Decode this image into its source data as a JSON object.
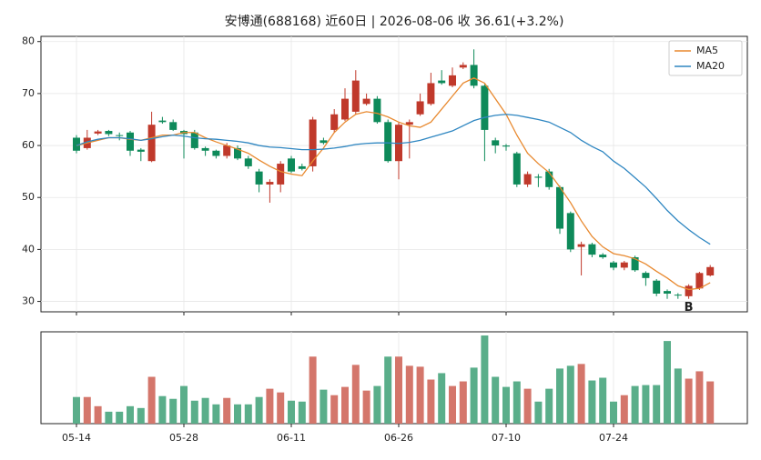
{
  "chart_data": {
    "type": "candlestick",
    "title": "安博通(688168) 近60日  |  2026-08-06 收 36.61(+3.2%)",
    "categories": [
      "05-14",
      null,
      null,
      null,
      null,
      null,
      null,
      null,
      null,
      null,
      "05-28",
      null,
      null,
      null,
      null,
      null,
      null,
      null,
      null,
      null,
      "06-11",
      null,
      null,
      null,
      null,
      null,
      null,
      null,
      null,
      null,
      "06-26",
      null,
      null,
      null,
      null,
      null,
      null,
      null,
      null,
      null,
      "07-10",
      null,
      null,
      null,
      null,
      null,
      null,
      null,
      null,
      null,
      "07-24",
      null,
      null,
      null,
      null,
      null,
      null,
      null,
      null,
      null
    ],
    "open": [
      61.5,
      59.5,
      62.3,
      62.8,
      62.0,
      62.5,
      59.2,
      57.0,
      64.8,
      64.5,
      62.8,
      62.5,
      59.5,
      59.0,
      58.0,
      59.5,
      57.5,
      55.0,
      52.5,
      52.5,
      57.5,
      56.0,
      56.0,
      61.0,
      63.0,
      65.0,
      66.5,
      68.0,
      69.0,
      64.5,
      57.0,
      64.0,
      66.0,
      68.0,
      72.5,
      71.5,
      75.0,
      75.5,
      71.5,
      61.0,
      60.0,
      58.5,
      52.5,
      54.0,
      55.0,
      52.0,
      47.0,
      40.5,
      41.0,
      39.0,
      37.5,
      36.5,
      38.5,
      35.5,
      34.0,
      32.0,
      31.3,
      31.0,
      32.5,
      35.0
    ],
    "high": [
      62,
      63,
      63,
      63,
      62.5,
      62.8,
      59.5,
      66.5,
      65.5,
      65,
      63,
      63,
      59.8,
      59.2,
      60.5,
      60,
      58,
      55.5,
      53.5,
      57,
      58,
      56.5,
      65.5,
      61.5,
      67,
      71,
      74.5,
      70,
      69.5,
      65,
      64.5,
      65,
      70,
      74,
      74.5,
      75,
      76,
      78.5,
      71.8,
      61.5,
      60.3,
      58.8,
      55,
      54.5,
      55.5,
      52.3,
      47.3,
      41.5,
      41.3,
      39.3,
      37.8,
      37.8,
      38.8,
      35.8,
      34.3,
      32.3,
      31.6,
      33.3,
      35.7,
      37
    ],
    "low": [
      58.5,
      59.2,
      62,
      61.8,
      61,
      58,
      57,
      56.8,
      64.2,
      62.8,
      57.5,
      59.2,
      58,
      57.5,
      57.5,
      57.2,
      55.5,
      51,
      49,
      51,
      54.7,
      55.2,
      55,
      60.2,
      62.5,
      64.7,
      66,
      67.7,
      64.2,
      56.7,
      53.5,
      57.5,
      65.7,
      67.7,
      71.7,
      71.2,
      74.7,
      71,
      57,
      58.5,
      59,
      52,
      52,
      52,
      51.5,
      43,
      39.5,
      35,
      38.5,
      38.2,
      36,
      36,
      35.7,
      33,
      31,
      30.5,
      30.5,
      30.5,
      32.2,
      34.8
    ],
    "close": [
      59.0,
      61.5,
      62.7,
      62.2,
      62.0,
      59.0,
      58.8,
      64.0,
      64.5,
      63.0,
      62.2,
      59.5,
      59.0,
      58.0,
      60.0,
      57.5,
      56.0,
      52.5,
      53.0,
      56.5,
      55.0,
      55.5,
      65.0,
      60.5,
      66.0,
      69.0,
      72.5,
      69.0,
      64.5,
      57.0,
      64.0,
      64.5,
      68.5,
      72.0,
      72.0,
      73.5,
      75.5,
      71.5,
      63.0,
      60.0,
      59.8,
      52.5,
      54.5,
      53.8,
      52.0,
      44.0,
      40.0,
      41.0,
      39.0,
      38.5,
      36.5,
      37.5,
      36.0,
      34.5,
      31.5,
      31.5,
      31.2,
      33.0,
      35.47,
      36.61
    ],
    "series": [
      {
        "name": "MA5",
        "color": "#e8892f",
        "values": [
          60.0,
          60.5,
          61.0,
          61.5,
          61.5,
          61.2,
          61.0,
          61.5,
          62.0,
          62.0,
          62.5,
          62.5,
          61.5,
          60.7,
          60.0,
          59.3,
          58.5,
          57.2,
          56.0,
          55.0,
          54.5,
          54.2,
          57.0,
          59.5,
          62.5,
          64.5,
          66.0,
          66.5,
          66.2,
          65.5,
          64.5,
          63.8,
          63.5,
          64.5,
          67.0,
          69.5,
          72.0,
          73.0,
          72.0,
          69.0,
          66.0,
          62.0,
          58.5,
          56.5,
          54.8,
          52.0,
          49.0,
          45.5,
          42.5,
          40.5,
          39.2,
          38.8,
          38.2,
          37.2,
          35.8,
          34.5,
          33.0,
          32.3,
          32.5,
          33.6
        ]
      },
      {
        "name": "MA20",
        "color": "#2e86c1",
        "values": [
          60.0,
          60.7,
          61.2,
          61.5,
          61.5,
          61.3,
          61.0,
          61.3,
          61.7,
          62.0,
          61.8,
          61.5,
          61.3,
          61.2,
          61.0,
          60.8,
          60.5,
          60.0,
          59.7,
          59.6,
          59.4,
          59.2,
          59.2,
          59.3,
          59.5,
          59.8,
          60.2,
          60.4,
          60.5,
          60.5,
          60.4,
          60.6,
          61.0,
          61.6,
          62.2,
          62.8,
          63.8,
          64.8,
          65.4,
          65.8,
          66.0,
          65.8,
          65.4,
          65.0,
          64.5,
          63.5,
          62.5,
          61.0,
          59.8,
          58.8,
          57.0,
          55.6,
          53.8,
          52.0,
          49.8,
          47.5,
          45.5,
          43.8,
          42.3,
          41.0
        ]
      }
    ],
    "up_color": "#c0392b",
    "down_color": "#0e8a5a",
    "volume": [
      29,
      29,
      19,
      13,
      13,
      19,
      17,
      51,
      30,
      27,
      41,
      25,
      28,
      21,
      28,
      21,
      21,
      29,
      38,
      34,
      25,
      24,
      73,
      37,
      31,
      40,
      64,
      36,
      41,
      73,
      73,
      63,
      62,
      48,
      55,
      41,
      46,
      61,
      96,
      51,
      40,
      46,
      38,
      24,
      38,
      60,
      63,
      65,
      47,
      50,
      24,
      31,
      41,
      42,
      42,
      90,
      60,
      49,
      57,
      46
    ],
    "volume_ylim": [
      0,
      100
    ],
    "volume_up_color": "#d4766b",
    "volume_down_color": "#5aae8a",
    "ylim": [
      28,
      81
    ],
    "yticks": [
      30,
      40,
      50,
      60,
      70,
      80
    ],
    "grid": true,
    "legend": "upper right",
    "annotations": [
      {
        "text": "B",
        "index": 57,
        "color": "#8e44ad"
      }
    ]
  }
}
